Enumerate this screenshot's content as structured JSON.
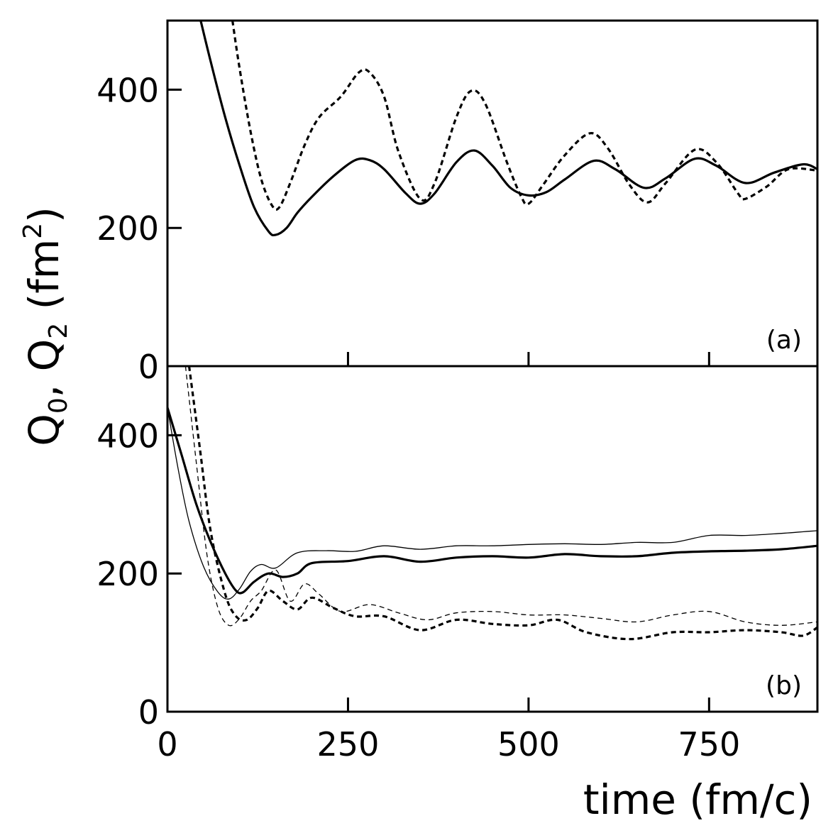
{
  "chart_data": {
    "type": "line",
    "xlabel": "time (fm/c)",
    "ylabel_parts": [
      "Q",
      "0",
      ", Q",
      "2",
      " (fm",
      "2",
      ")"
    ],
    "xlim": [
      0,
      900
    ],
    "ylim": [
      0,
      500
    ],
    "x_ticks": [
      0,
      250,
      500,
      750
    ],
    "y_ticks": [
      0,
      200,
      400
    ],
    "panels": [
      {
        "label": "(a)",
        "series": [
          {
            "style": "solid-thick",
            "x": [
              46,
              60,
              80,
              100,
              120,
              140,
              150,
              165,
              180,
              200,
              230,
              260,
              280,
              300,
              330,
              350,
              370,
              400,
              425,
              450,
              475,
              500,
              525,
              550,
              590,
              620,
              660,
              690,
              730,
              760,
              800,
              840,
              880,
              900
            ],
            "y": [
              500,
              440,
              360,
              290,
              230,
              195,
              190,
              200,
              222,
              245,
              275,
              298,
              298,
              285,
              250,
              235,
              250,
              295,
              312,
              290,
              258,
              247,
              252,
              270,
              297,
              285,
              258,
              272,
              300,
              290,
              265,
              280,
              292,
              285
            ]
          },
          {
            "style": "dashed-thick",
            "x": [
              90,
              100,
              115,
              130,
              145,
              155,
              170,
              190,
              210,
              240,
              265,
              280,
              300,
              320,
              350,
              370,
              400,
              420,
              440,
              470,
              490,
              500,
              520,
              550,
              585,
              610,
              640,
              665,
              690,
              730,
              760,
              790,
              800,
              830,
              860,
              900
            ],
            "y": [
              500,
              430,
              340,
              270,
              232,
              230,
              265,
              320,
              360,
              390,
              425,
              425,
              390,
              310,
              242,
              265,
              360,
              398,
              380,
              295,
              245,
              235,
              262,
              305,
              337,
              315,
              262,
              237,
              265,
              313,
              295,
              250,
              242,
              260,
              285,
              283
            ]
          }
        ]
      },
      {
        "label": "(b)",
        "series": [
          {
            "style": "solid-thick",
            "x": [
              0,
              20,
              40,
              60,
              80,
              95,
              105,
              120,
              140,
              160,
              180,
              200,
              250,
              300,
              350,
              400,
              450,
              500,
              550,
              600,
              650,
              700,
              750,
              800,
              850,
              900
            ],
            "y": [
              440,
              370,
              300,
              245,
              200,
              175,
              173,
              188,
              200,
              195,
              200,
              215,
              218,
              225,
              217,
              223,
              225,
              223,
              228,
              225,
              225,
              230,
              232,
              233,
              235,
              240
            ]
          },
          {
            "style": "solid-thin",
            "x": [
              0,
              15,
              30,
              50,
              70,
              85,
              100,
              115,
              130,
              150,
              180,
              220,
              260,
              300,
              350,
              400,
              450,
              500,
              550,
              600,
              650,
              700,
              750,
              800,
              850,
              900
            ],
            "y": [
              440,
              350,
              275,
              210,
              173,
              163,
              178,
              203,
              213,
              208,
              230,
              233,
              232,
              240,
              235,
              240,
              240,
              242,
              243,
              242,
              245,
              245,
              255,
              255,
              258,
              262
            ]
          },
          {
            "style": "dashed-thick",
            "x": [
              30,
              45,
              60,
              80,
              95,
              110,
              125,
              140,
              160,
              180,
              200,
              230,
              260,
              300,
              350,
              400,
              450,
              500,
              540,
              580,
              640,
              700,
              750,
              800,
              850,
              880,
              900
            ],
            "y": [
              500,
              380,
              260,
              170,
              138,
              133,
              150,
              175,
              160,
              148,
              165,
              150,
              138,
              138,
              118,
              133,
              127,
              125,
              133,
              115,
              105,
              115,
              115,
              118,
              115,
              110,
              122
            ]
          },
          {
            "style": "dashed-thin",
            "x": [
              25,
              40,
              55,
              70,
              85,
              100,
              115,
              130,
              150,
              170,
              190,
              210,
              240,
              280,
              320,
              360,
              400,
              450,
              500,
              550,
              600,
              650,
              700,
              750,
              800,
              850,
              900
            ],
            "y": [
              500,
              360,
              225,
              150,
              125,
              135,
              160,
              175,
              205,
              160,
              185,
              170,
              145,
              155,
              143,
              133,
              143,
              145,
              140,
              140,
              135,
              130,
              140,
              145,
              130,
              125,
              130
            ]
          }
        ]
      }
    ]
  }
}
